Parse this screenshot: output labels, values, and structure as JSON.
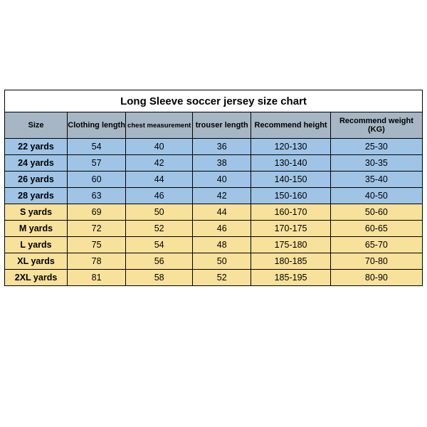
{
  "title": "Long Sleeve soccer jersey size chart",
  "colors": {
    "header_bg": "#a6b6c5",
    "blue_row": "#9fc4e6",
    "yellow_row": "#f7e19b",
    "border": "#000000"
  },
  "column_widths_pct": [
    15,
    14,
    16,
    14,
    19,
    22
  ],
  "columns": [
    "Size",
    "Clothing length",
    "chest measurement",
    "trouser length",
    "Recommend height",
    "Recommend weight (KG)"
  ],
  "rows": [
    {
      "group": "blue",
      "cells": [
        "22 yards",
        "54",
        "40",
        "36",
        "120-130",
        "25-30"
      ]
    },
    {
      "group": "blue",
      "cells": [
        "24 yards",
        "57",
        "42",
        "38",
        "130-140",
        "30-35"
      ]
    },
    {
      "group": "blue",
      "cells": [
        "26 yards",
        "60",
        "44",
        "40",
        "140-150",
        "35-40"
      ]
    },
    {
      "group": "blue",
      "cells": [
        "28 yards",
        "63",
        "46",
        "42",
        "150-160",
        "40-50"
      ]
    },
    {
      "group": "yellow",
      "cells": [
        "S yards",
        "69",
        "50",
        "44",
        "160-170",
        "50-60"
      ]
    },
    {
      "group": "yellow",
      "cells": [
        "M yards",
        "72",
        "52",
        "46",
        "170-175",
        "60-65"
      ]
    },
    {
      "group": "yellow",
      "cells": [
        "L yards",
        "75",
        "54",
        "48",
        "175-180",
        "65-70"
      ]
    },
    {
      "group": "yellow",
      "cells": [
        "XL yards",
        "78",
        "56",
        "50",
        "180-185",
        "70-80"
      ]
    },
    {
      "group": "yellow",
      "cells": [
        "2XL yards",
        "81",
        "58",
        "52",
        "185-195",
        "80-90"
      ]
    }
  ]
}
